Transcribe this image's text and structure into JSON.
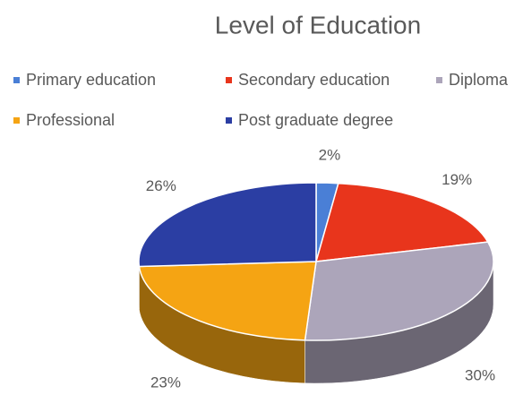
{
  "chart_data": {
    "type": "pie3d",
    "title": "Level of Education",
    "categories": [
      "Primary education",
      "Secondary education",
      "Diploma",
      "Professional",
      "Post graduate degree"
    ],
    "values": [
      2,
      19,
      30,
      23,
      26
    ],
    "value_labels": [
      "2%",
      "19%",
      "30%",
      "23%",
      "26%"
    ],
    "colors": [
      "#4a7fd6",
      "#e8351c",
      "#aca5ba",
      "#f5a413",
      "#2b3ea3"
    ],
    "legend": "top"
  }
}
